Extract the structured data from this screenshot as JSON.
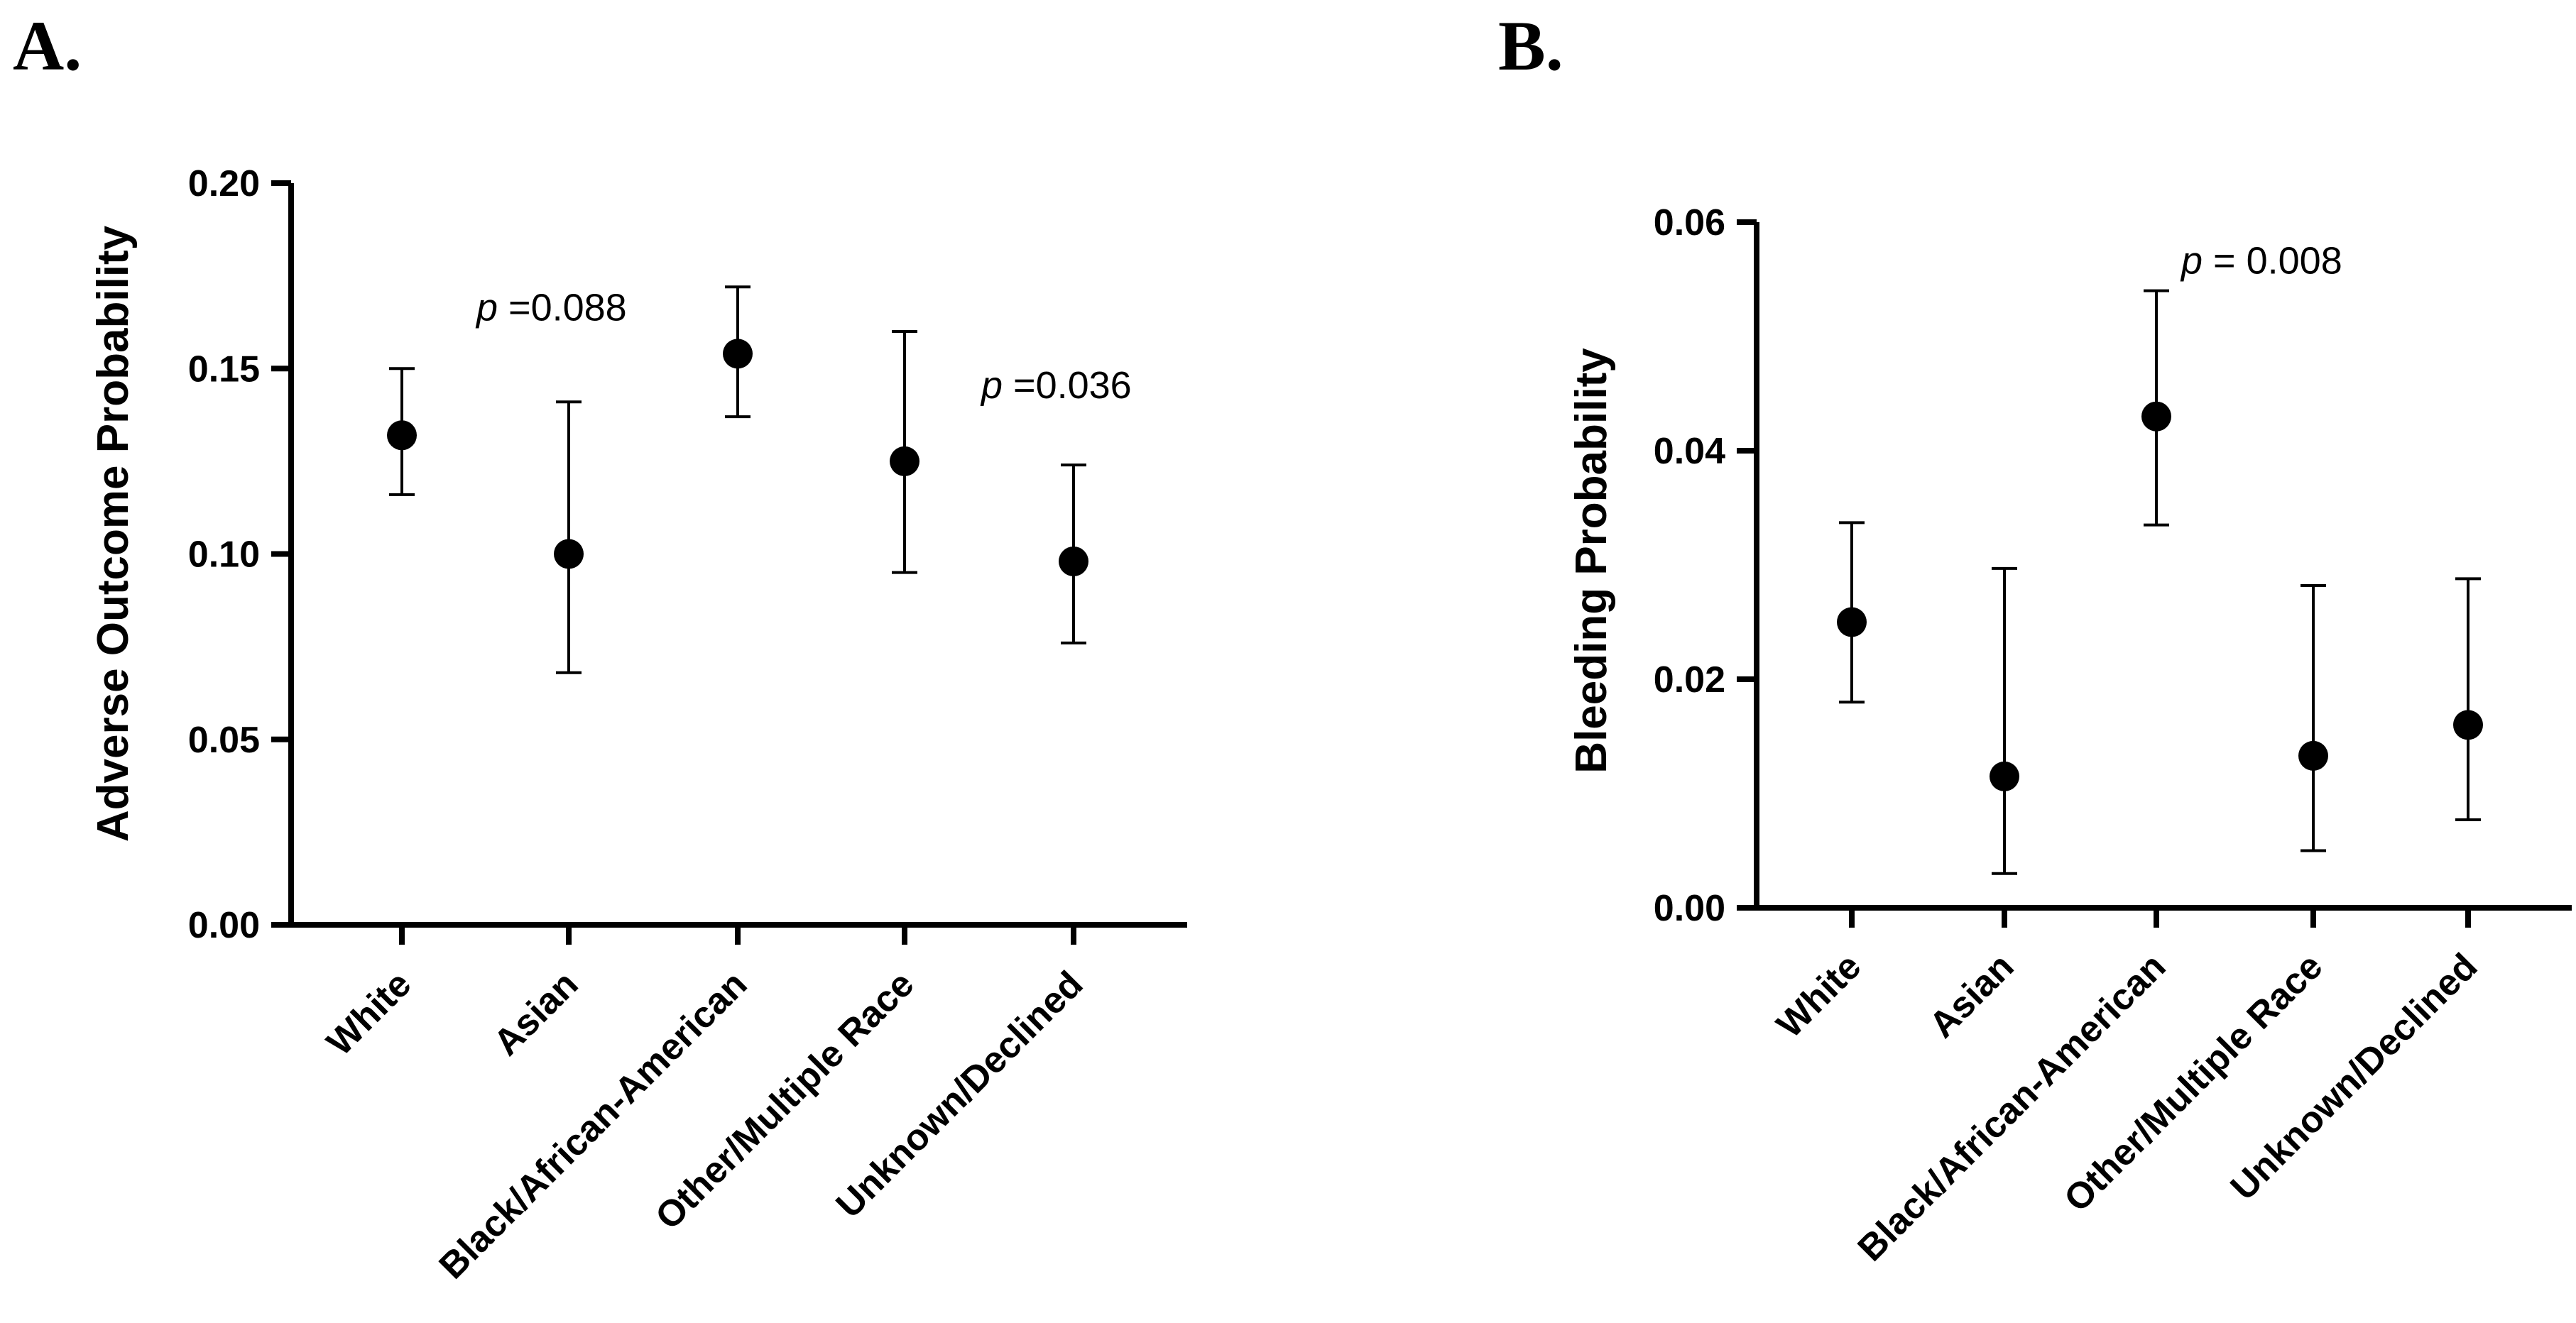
{
  "chart_data": [
    {
      "panel_label": "A.",
      "type": "scatter",
      "ylabel": "Adverse Outcome Probability",
      "xlabel": "",
      "ylim": [
        0,
        0.2
      ],
      "yticks": [
        "0.00",
        "0.05",
        "0.10",
        "0.15",
        "0.20"
      ],
      "ytick_values": [
        0,
        0.05,
        0.1,
        0.15,
        0.2
      ],
      "categories": [
        "White",
        "Asian",
        "Black/African-American",
        "Other/Multiple Race",
        "Unknown/Declined"
      ],
      "values": [
        0.132,
        0.1,
        0.154,
        0.125,
        0.098
      ],
      "err_low": [
        0.116,
        0.068,
        0.137,
        0.095,
        0.076
      ],
      "err_high": [
        0.15,
        0.141,
        0.172,
        0.16,
        0.124
      ],
      "annotations": [
        {
          "p": "p",
          "text": " =0.088",
          "category": 1,
          "y": 0.163
        },
        {
          "p": "p",
          "text": " =0.036",
          "category": 4,
          "y": 0.142
        }
      ]
    },
    {
      "panel_label": "B.",
      "type": "scatter",
      "ylabel": "Bleeding Probability",
      "xlabel": "",
      "ylim": [
        0,
        0.06
      ],
      "yticks": [
        "0.00",
        "0.02",
        "0.04",
        "0.06"
      ],
      "ytick_values": [
        0,
        0.02,
        0.04,
        0.06
      ],
      "categories": [
        "White",
        "Asian",
        "Black/African-American",
        "Other/Multiple Race",
        "Unknown/Declined"
      ],
      "values": [
        0.025,
        0.0115,
        0.043,
        0.0133,
        0.016
      ],
      "err_low": [
        0.018,
        0.003,
        0.0335,
        0.005,
        0.0077
      ],
      "err_high": [
        0.0337,
        0.0297,
        0.054,
        0.0282,
        0.0288
      ],
      "annotations": [
        {
          "p": "p",
          "text": " = 0.008",
          "category": 2,
          "y": 0.0555
        }
      ]
    }
  ]
}
